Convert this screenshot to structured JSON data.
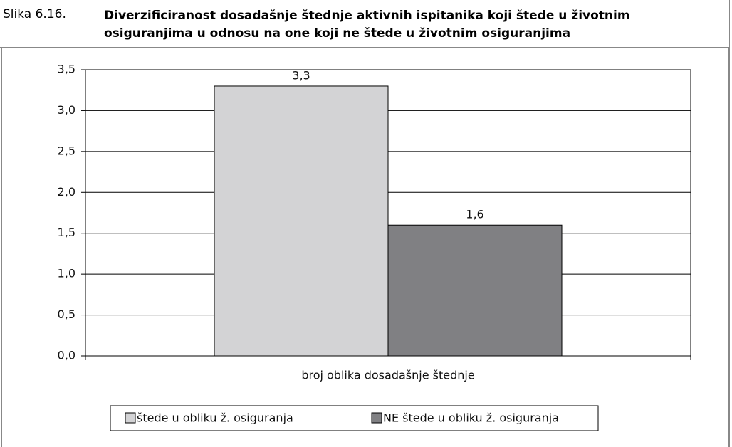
{
  "chart_data": {
    "type": "bar",
    "figure_label": "Slika 6.16.",
    "title": "Diverzificiranost dosadašnje štednje aktivnih ispitanika koji štede u životnim osiguranjima u odnosu na one koji ne štede u životnim osiguranjima",
    "categories": [
      "broj oblika dosadašnje štednje"
    ],
    "series": [
      {
        "name": "štede u obliku ž. osiguranja",
        "color": "#d3d3d5",
        "values": [
          3.3
        ],
        "value_labels": [
          "3,3"
        ]
      },
      {
        "name": "NE štede u obliku ž. osiguranja",
        "color": "#808083",
        "values": [
          1.6
        ],
        "value_labels": [
          "1,6"
        ]
      }
    ],
    "ylim": [
      0,
      3.5
    ],
    "yticks": [
      {
        "value": 0,
        "label": "0,0"
      },
      {
        "value": 0.5,
        "label": "0,5"
      },
      {
        "value": 1,
        "label": "1,0"
      },
      {
        "value": 1.5,
        "label": "1,5"
      },
      {
        "value": 2,
        "label": "2,0"
      },
      {
        "value": 2.5,
        "label": "2,5"
      },
      {
        "value": 3,
        "label": "3,0"
      },
      {
        "value": 3.5,
        "label": "3,5"
      }
    ],
    "grid": true,
    "legend": "bottom"
  }
}
